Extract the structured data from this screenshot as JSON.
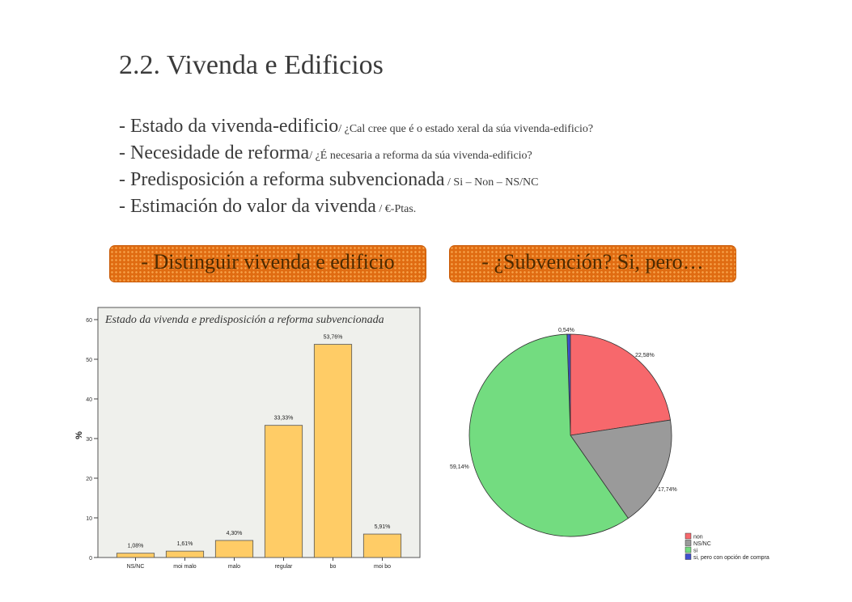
{
  "slide": {
    "title": "2.2. Vivenda e Edificios",
    "bullets": [
      {
        "main": "- Estado da vivenda-edificio",
        "sub": "/ ¿Cal cree que é o estado xeral da súa vivenda-edificio?"
      },
      {
        "main": "- Necesidade de reforma",
        "sub": "/ ¿É necesaria a reforma da súa vivenda-edificio?"
      },
      {
        "main": "- Predisposición a reforma subvencionada",
        "sub": " / Si – Non – NS/NC"
      },
      {
        "main": "- Estimación do valor da vivenda",
        "sub": " / €-Ptas."
      }
    ],
    "badge_left": "- Distinguir vivenda e edificio",
    "badge_right": "- ¿Subvención? Si, pero…"
  },
  "colors": {
    "bar_fill": "#FFCC66",
    "pie": [
      "#F7686C",
      "#9A9A9A",
      "#73DC80",
      "#3F4FCF"
    ]
  },
  "chart_data": [
    {
      "type": "bar",
      "title": "Estado da vivenda e predisposición a reforma subvencionada",
      "ylabel": "%",
      "ylim": [
        0,
        60
      ],
      "yticks": [
        "0",
        "10",
        "20",
        "30",
        "40",
        "50",
        "60"
      ],
      "categories": [
        "NS/NC",
        "moi malo",
        "malo",
        "regular",
        "bo",
        "moi bo"
      ],
      "values": [
        1.08,
        1.61,
        4.3,
        33.33,
        53.76,
        5.91
      ],
      "labels": [
        "1,08%",
        "1,61%",
        "4,30%",
        "33,33%",
        "53,76%",
        "5,91%"
      ],
      "grid": false
    },
    {
      "type": "pie",
      "categories": [
        "non",
        "NS/NC",
        "si",
        "si, pero con opción de compra"
      ],
      "values": [
        22.58,
        17.74,
        59.14,
        0.54
      ],
      "labels": [
        "22,58%",
        "17,74%",
        "59,14%",
        "0,54%"
      ],
      "legend": "bottom-right"
    }
  ]
}
